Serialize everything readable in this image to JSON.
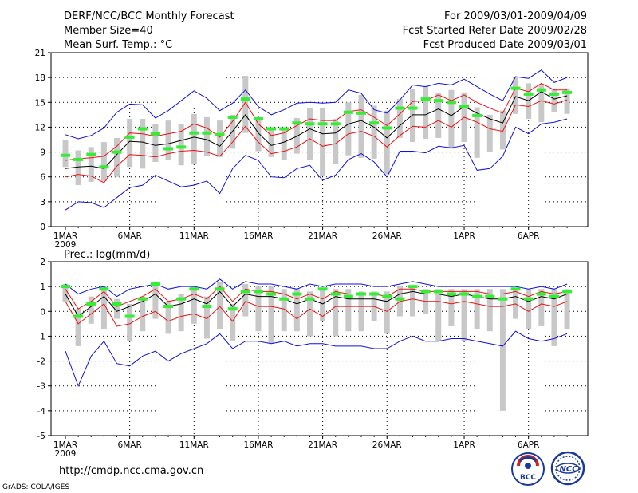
{
  "header": {
    "title": "DERF/NCC/BCC Monthly Forecast",
    "member_size": "Member Size=40",
    "variable": "Mean Surf. Temp.: °C",
    "period": "For 2009/03/01-2009/04/09",
    "started": "Fcst Started Refer Date 2009/02/28",
    "produced": "Fcst Produced Date 2009/03/01"
  },
  "footer": {
    "url": "http://cmdp.ncc.cma.gov.cn",
    "grads": "GrADS: COLA/IGES",
    "logo_bcc": "BCC",
    "logo_ncc": "NCC"
  },
  "colors": {
    "spread_bar": "#c8c8c8",
    "ensemble_mean": "#000000",
    "inner_band": "#ee1111",
    "outer_band": "#1111dd",
    "observed": "#33ee33"
  },
  "chart_data": [
    {
      "type": "line",
      "title": "Mean Surf. Temp.: °C",
      "ylim": [
        0,
        21
      ],
      "yticks": [
        "0",
        "3",
        "6",
        "9",
        "12",
        "15",
        "18",
        "21"
      ],
      "xticks": [
        {
          "label": "1MAR",
          "day": 1
        },
        {
          "label": "6MAR",
          "day": 6
        },
        {
          "label": "11MAR",
          "day": 11
        },
        {
          "label": "16MAR",
          "day": 16
        },
        {
          "label": "21MAR",
          "day": 21
        },
        {
          "label": "26MAR",
          "day": 26
        },
        {
          "label": "1APR",
          "day": 32
        },
        {
          "label": "6APR",
          "day": 37
        }
      ],
      "year_label": "2009",
      "x": [
        1,
        2,
        3,
        4,
        5,
        6,
        7,
        8,
        9,
        10,
        11,
        12,
        13,
        14,
        15,
        16,
        17,
        18,
        19,
        20,
        21,
        22,
        23,
        24,
        25,
        26,
        27,
        28,
        29,
        30,
        31,
        32,
        33,
        34,
        35,
        36,
        37,
        38,
        39,
        40
      ],
      "series": [
        {
          "name": "ensemble mean",
          "values": [
            7.0,
            7.2,
            7.3,
            7.0,
            8.7,
            10.3,
            10.2,
            9.8,
            10.0,
            10.4,
            10.8,
            10.5,
            9.7,
            11.5,
            13.5,
            11.3,
            9.8,
            10.2,
            10.9,
            11.8,
            11.2,
            11.3,
            12.4,
            12.8,
            12.0,
            10.7,
            12.2,
            13.5,
            13.5,
            14.2,
            13.4,
            14.5,
            13.7,
            13.0,
            12.5,
            15.7,
            15.2,
            16.3,
            15.4,
            15.8
          ]
        },
        {
          "name": "inner upper",
          "values": [
            8.0,
            8.2,
            8.3,
            8.5,
            9.7,
            11.3,
            11.2,
            10.9,
            11.2,
            11.5,
            12.4,
            11.9,
            10.8,
            12.7,
            15.0,
            12.4,
            11.0,
            11.3,
            12.2,
            13.0,
            12.8,
            12.8,
            13.9,
            14.1,
            13.2,
            12.2,
            13.6,
            15.1,
            15.2,
            15.9,
            15.2,
            15.9,
            15.0,
            14.3,
            13.7,
            16.7,
            16.3,
            17.3,
            16.5,
            16.5
          ]
        },
        {
          "name": "inner lower",
          "values": [
            6.0,
            6.3,
            6.1,
            5.3,
            7.3,
            8.7,
            8.6,
            8.4,
            8.8,
            9.1,
            9.2,
            9.0,
            8.5,
            10.2,
            12.1,
            10.2,
            8.8,
            9.1,
            9.6,
            10.6,
            9.7,
            10.0,
            11.2,
            11.5,
            10.9,
            9.6,
            11.0,
            12.1,
            12.0,
            12.8,
            12.0,
            13.2,
            12.6,
            11.8,
            11.5,
            14.7,
            14.5,
            15.2,
            14.8,
            15.3
          ]
        },
        {
          "name": "outer upper",
          "values": [
            11.1,
            10.6,
            11.0,
            11.9,
            13.8,
            14.8,
            14.7,
            13.1,
            14.0,
            15.2,
            16.4,
            15.5,
            14.0,
            14.9,
            16.5,
            14.5,
            13.5,
            14.1,
            14.9,
            15.0,
            14.9,
            15.0,
            16.5,
            16.1,
            14.1,
            13.7,
            15.3,
            17.1,
            16.9,
            17.3,
            17.1,
            17.8,
            16.9,
            16.0,
            15.2,
            18.1,
            17.9,
            18.9,
            17.4,
            18.0
          ]
        },
        {
          "name": "outer lower",
          "values": [
            2.0,
            3.0,
            2.9,
            2.3,
            3.5,
            4.7,
            5.0,
            6.2,
            5.5,
            4.8,
            5.0,
            5.5,
            4.0,
            7.0,
            8.6,
            8.0,
            6.0,
            5.9,
            7.0,
            7.4,
            5.6,
            6.2,
            8.1,
            8.8,
            7.8,
            6.0,
            9.1,
            9.1,
            8.9,
            9.7,
            9.5,
            9.8,
            6.8,
            7.0,
            8.5,
            12.0,
            11.2,
            12.4,
            12.6,
            13.0
          ]
        },
        {
          "name": "observed",
          "values": [
            8.6,
            8.1,
            8.7,
            7.2,
            9.0,
            10.8,
            11.8,
            11.2,
            9.4,
            9.6,
            11.3,
            11.3,
            11.1,
            13.2,
            15.4,
            13.0,
            11.8,
            11.8,
            12.5,
            12.4,
            12.4,
            12.4,
            13.8,
            13.7,
            12.5,
            11.9,
            14.3,
            14.3,
            15.4,
            15.2,
            15.0,
            14.5,
            13.4,
            null,
            null,
            16.7,
            16.0,
            16.5,
            16.0,
            16.2
          ]
        }
      ],
      "spread_bars": [
        [
          7.2,
          10.5
        ],
        [
          5.0,
          9.2
        ],
        [
          5.4,
          9.6
        ],
        [
          5.5,
          10.2
        ],
        [
          6.0,
          10.7
        ],
        [
          7.2,
          13.0
        ],
        [
          7.0,
          13.0
        ],
        [
          7.8,
          12.4
        ],
        [
          8.0,
          12.8
        ],
        [
          7.4,
          12.4
        ],
        [
          7.6,
          13.6
        ],
        [
          8.5,
          13.2
        ],
        [
          8.4,
          12.8
        ],
        [
          9.4,
          13.5
        ],
        [
          11.3,
          18.2
        ],
        [
          9.1,
          13.2
        ],
        [
          8.4,
          12.0
        ],
        [
          8.0,
          11.9
        ],
        [
          8.8,
          13.1
        ],
        [
          8.0,
          14.3
        ],
        [
          6.1,
          14.3
        ],
        [
          7.6,
          13.0
        ],
        [
          8.6,
          15.0
        ],
        [
          8.3,
          15.9
        ],
        [
          8.2,
          14.6
        ],
        [
          6.3,
          14.0
        ],
        [
          10.7,
          15.4
        ],
        [
          10.2,
          16.6
        ],
        [
          10.6,
          17.0
        ],
        [
          10.7,
          16.1
        ],
        [
          9.4,
          16.5
        ],
        [
          10.2,
          16.2
        ],
        [
          8.3,
          14.4
        ],
        [
          9.0,
          13.5
        ],
        [
          9.3,
          14.0
        ],
        [
          13.6,
          18.0
        ],
        [
          13.0,
          17.3
        ],
        [
          12.6,
          17.2
        ],
        [
          13.8,
          16.6
        ],
        [
          13.6,
          16.7
        ]
      ]
    },
    {
      "type": "line",
      "title": "Prec.: log(mm/d)",
      "ylim": [
        -5,
        2
      ],
      "yticks": [
        "-5",
        "-4",
        "-3",
        "-2",
        "-1",
        "0",
        "1",
        "2"
      ],
      "xticks": [
        {
          "label": "1MAR",
          "day": 1
        },
        {
          "label": "6MAR",
          "day": 6
        },
        {
          "label": "11MAR",
          "day": 11
        },
        {
          "label": "16MAR",
          "day": 16
        },
        {
          "label": "21MAR",
          "day": 21
        },
        {
          "label": "26MAR",
          "day": 26
        },
        {
          "label": "1APR",
          "day": 32
        },
        {
          "label": "6APR",
          "day": 37
        }
      ],
      "year_label": "2009",
      "x": [
        1,
        2,
        3,
        4,
        5,
        6,
        7,
        8,
        9,
        10,
        11,
        12,
        13,
        14,
        15,
        16,
        17,
        18,
        19,
        20,
        21,
        22,
        23,
        24,
        25,
        26,
        27,
        28,
        29,
        30,
        31,
        32,
        33,
        34,
        35,
        36,
        37,
        38,
        39,
        40
      ],
      "series": [
        {
          "name": "ensemble mean",
          "values": [
            0.7,
            -0.2,
            0.2,
            0.6,
            0.0,
            0.2,
            0.4,
            0.7,
            0.2,
            0.3,
            0.5,
            0.3,
            0.8,
            0.2,
            0.7,
            0.6,
            0.6,
            0.5,
            0.3,
            0.5,
            0.3,
            0.6,
            0.5,
            0.5,
            0.5,
            0.4,
            0.7,
            0.8,
            0.7,
            0.7,
            0.6,
            0.7,
            0.6,
            0.5,
            0.5,
            0.6,
            0.4,
            0.6,
            0.5,
            0.7
          ]
        },
        {
          "name": "inner upper",
          "values": [
            0.9,
            0.1,
            0.4,
            0.8,
            0.2,
            0.4,
            0.6,
            0.9,
            0.4,
            0.5,
            0.7,
            0.5,
            1.0,
            0.4,
            0.9,
            0.8,
            0.8,
            0.7,
            0.5,
            0.7,
            0.5,
            0.8,
            0.7,
            0.7,
            0.7,
            0.6,
            0.9,
            0.9,
            0.8,
            0.8,
            0.8,
            0.8,
            0.8,
            0.7,
            0.7,
            0.8,
            0.6,
            0.8,
            0.7,
            0.8
          ]
        },
        {
          "name": "inner lower",
          "values": [
            0.4,
            -0.5,
            -0.1,
            0.3,
            -0.6,
            -0.5,
            -0.2,
            0.0,
            -0.4,
            -0.2,
            -0.1,
            -0.3,
            0.2,
            -0.4,
            0.4,
            0.2,
            0.2,
            0.1,
            -0.3,
            0.1,
            -0.2,
            0.2,
            0.2,
            0.2,
            0.2,
            0.0,
            0.4,
            0.5,
            0.4,
            0.4,
            0.3,
            0.4,
            0.3,
            0.2,
            0.2,
            0.3,
            0.0,
            0.3,
            0.2,
            0.4
          ]
        },
        {
          "name": "outer upper",
          "values": [
            1.1,
            0.7,
            0.9,
            1.0,
            0.6,
            0.9,
            1.0,
            1.1,
            0.9,
            1.0,
            1.0,
            0.9,
            1.3,
            0.9,
            1.2,
            1.1,
            1.1,
            1.0,
            0.9,
            1.1,
            1.0,
            1.1,
            1.1,
            1.1,
            1.0,
            1.0,
            1.1,
            1.2,
            1.1,
            1.0,
            1.0,
            1.0,
            1.0,
            1.0,
            1.0,
            1.0,
            0.9,
            1.0,
            0.9,
            1.1
          ]
        },
        {
          "name": "outer lower",
          "values": [
            -1.6,
            -3.0,
            -1.8,
            -1.2,
            -2.1,
            -2.2,
            -1.8,
            -1.6,
            -2.0,
            -1.7,
            -1.5,
            -1.3,
            -0.9,
            -1.5,
            -1.2,
            -1.2,
            -1.3,
            -1.2,
            -1.4,
            -1.3,
            -1.3,
            -1.4,
            -1.4,
            -1.4,
            -1.5,
            -1.5,
            -1.2,
            -1.0,
            -1.2,
            -1.2,
            -1.1,
            -1.1,
            -1.2,
            -1.3,
            -1.4,
            -0.8,
            -1.1,
            -1.2,
            -1.1,
            -0.9
          ]
        },
        {
          "name": "observed",
          "values": [
            1.0,
            -0.2,
            0.3,
            0.9,
            0.3,
            -0.2,
            0.5,
            1.1,
            0.2,
            0.5,
            0.9,
            0.2,
            0.9,
            0.1,
            0.8,
            0.8,
            0.7,
            0.5,
            0.7,
            0.5,
            0.9,
            0.7,
            0.6,
            0.7,
            0.7,
            0.6,
            0.5,
            1.0,
            0.8,
            0.8,
            0.7,
            0.7,
            0.6,
            0.6,
            0.5,
            0.9,
            0.5,
            0.7,
            0.6,
            0.8
          ]
        }
      ],
      "spread_bars": [
        [
          0.4,
          1.1
        ],
        [
          -1.4,
          0.1
        ],
        [
          -0.5,
          0.6
        ],
        [
          -0.7,
          1.0
        ],
        [
          -0.3,
          0.5
        ],
        [
          -1.2,
          0.3
        ],
        [
          -0.8,
          0.6
        ],
        [
          -0.3,
          1.1
        ],
        [
          -0.9,
          0.4
        ],
        [
          -0.8,
          0.7
        ],
        [
          -0.5,
          1.0
        ],
        [
          -1.1,
          0.6
        ],
        [
          -0.7,
          1.2
        ],
        [
          -1.2,
          0.3
        ],
        [
          -0.2,
          1.1
        ],
        [
          -0.8,
          1.0
        ],
        [
          -1.3,
          1.0
        ],
        [
          -0.8,
          0.9
        ],
        [
          -0.8,
          0.9
        ],
        [
          -1.0,
          0.8
        ],
        [
          -0.4,
          0.9
        ],
        [
          -1.0,
          0.9
        ],
        [
          -0.8,
          0.9
        ],
        [
          -0.8,
          0.8
        ],
        [
          -0.4,
          0.8
        ],
        [
          -0.9,
          0.8
        ],
        [
          -0.2,
          1.0
        ],
        [
          -0.2,
          1.0
        ],
        [
          -0.1,
          0.9
        ],
        [
          -1.2,
          0.9
        ],
        [
          -0.6,
          0.9
        ],
        [
          -1.2,
          0.9
        ],
        [
          -0.7,
          0.9
        ],
        [
          -0.8,
          0.9
        ],
        [
          -4.0,
          0.9
        ],
        [
          -0.3,
          0.9
        ],
        [
          -0.7,
          0.9
        ],
        [
          -0.6,
          0.9
        ],
        [
          -1.4,
          0.9
        ],
        [
          -0.7,
          0.9
        ]
      ]
    }
  ]
}
